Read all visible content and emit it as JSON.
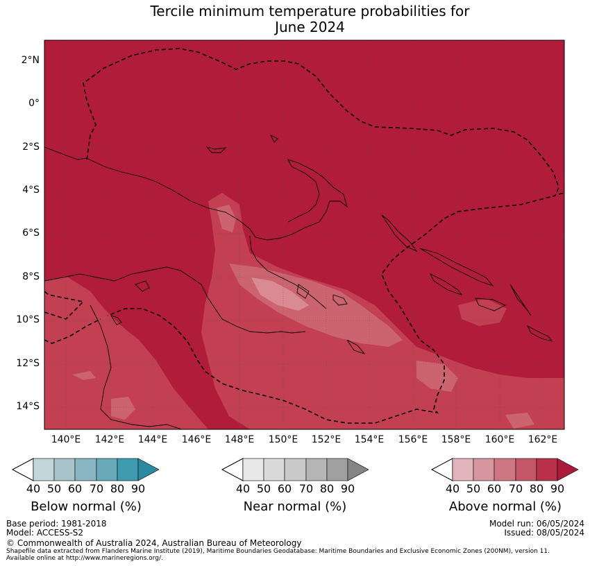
{
  "title": {
    "line1": "Tercile minimum temperature probabilities for",
    "line2": "June 2024"
  },
  "map": {
    "lat_labels": [
      "2°N",
      "0°",
      "2°S",
      "4°S",
      "6°S",
      "8°S",
      "10°S",
      "12°S",
      "14°S"
    ],
    "lon_labels": [
      "140°E",
      "142°E",
      "144°E",
      "146°E",
      "148°E",
      "150°E",
      "152°E",
      "154°E",
      "156°E",
      "158°E",
      "160°E",
      "162°E"
    ],
    "lat_range": [
      2.8,
      -15.0
    ],
    "lon_range": [
      139.0,
      163.0
    ],
    "dominant_category": "Above normal",
    "dominant_probability_band": "80-90"
  },
  "legend": {
    "below": {
      "label": "Below normal (%)",
      "ticks": [
        "40",
        "50",
        "60",
        "70",
        "80",
        "90"
      ],
      "colors": [
        "#c2d7dc",
        "#a8c4ca",
        "#89b6c2",
        "#69aab9",
        "#3f9caf",
        "#2b8aa0"
      ]
    },
    "near": {
      "label": "Near normal (%)",
      "ticks": [
        "40",
        "50",
        "60",
        "70",
        "80",
        "90"
      ],
      "colors": [
        "#e8e8e8",
        "#dadada",
        "#c9c9c9",
        "#b5b5b5",
        "#a0a0a0",
        "#858585"
      ]
    },
    "above": {
      "label": "Above normal (%)",
      "ticks": [
        "40",
        "50",
        "60",
        "70",
        "80",
        "90"
      ],
      "colors": [
        "#e2b5bd",
        "#d7959f",
        "#cd7782",
        "#c35767",
        "#b9314b",
        "#ac1a3b"
      ]
    }
  },
  "colors": {
    "above_80": "#b11c3a",
    "above_70": "#c24052",
    "above_60": "#cc6470",
    "above_50": "#d98a92"
  },
  "footer": {
    "base_period": "Base period: 1981-2018",
    "model": "Model: ACCESS-S2",
    "model_run": "Model run: 06/05/2024",
    "issued": "Issued: 08/05/2024",
    "copyright": "© Commonwealth of Australia 2024, Australian Bureau of Meteorology",
    "shapefile_line1": "Shapefile data extracted from Flanders Marine Institute (2019), Maritime Boundaries Geodatabase: Maritime Boundaries and Exclusive Economic Zones (200NM), version 11.",
    "shapefile_line2": "Available online at http://www.marineregions.org/."
  }
}
